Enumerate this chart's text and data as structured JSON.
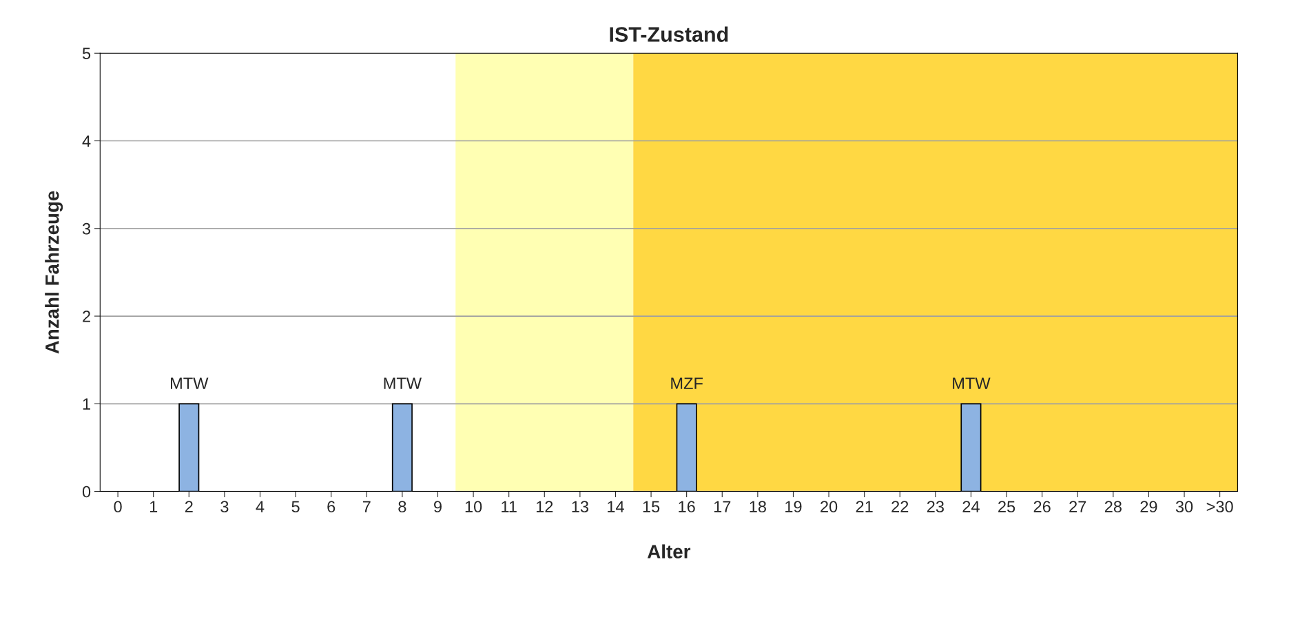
{
  "chart_data": {
    "type": "bar",
    "title": "IST-Zustand",
    "xlabel": "Alter",
    "ylabel": "Anzahl Fahrzeuge",
    "categories": [
      "0",
      "1",
      "2",
      "3",
      "4",
      "5",
      "6",
      "7",
      "8",
      "9",
      "10",
      "11",
      "12",
      "13",
      "14",
      "15",
      "16",
      "17",
      "18",
      "19",
      "20",
      "21",
      "22",
      "23",
      "24",
      "25",
      "26",
      "27",
      "28",
      "29",
      "30",
      ">30"
    ],
    "series": [
      {
        "color": "#8db3e2",
        "values": [
          0,
          0,
          1,
          0,
          0,
          0,
          0,
          0,
          1,
          0,
          0,
          0,
          0,
          0,
          0,
          0,
          1,
          0,
          0,
          0,
          0,
          0,
          0,
          0,
          1,
          0,
          0,
          0,
          0,
          0,
          0,
          0
        ],
        "value_labels": [
          null,
          null,
          "MTW",
          null,
          null,
          null,
          null,
          null,
          "MTW",
          null,
          null,
          null,
          null,
          null,
          null,
          null,
          "MZF",
          null,
          null,
          null,
          null,
          null,
          null,
          null,
          "MTW",
          null,
          null,
          null,
          null,
          null,
          null,
          null
        ]
      }
    ],
    "ylim": [
      0,
      5
    ],
    "yticks": [
      0,
      1,
      2,
      3,
      4,
      5
    ],
    "grid": "y",
    "bands": [
      {
        "axis": "x",
        "from": "10",
        "to": "14",
        "color": "#ffffb3"
      },
      {
        "axis": "x",
        "from": "15",
        "to": ">30",
        "color": "#ffd843"
      }
    ]
  }
}
